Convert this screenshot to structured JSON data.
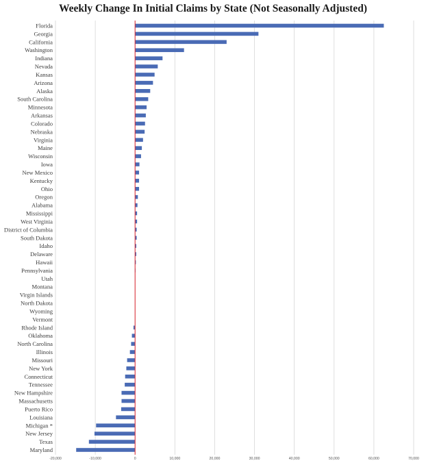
{
  "colors": {
    "bar": "#4a6bb5",
    "zero_line": "#d9303a",
    "grid": "#d6d6d6",
    "text": "#3a3a3a"
  },
  "chart_data": {
    "type": "bar",
    "orientation": "horizontal",
    "title": "Weekly Change In Initial Claims by State (Not Seasonally Adjusted)",
    "xlabel": "",
    "ylabel": "",
    "xlim": [
      -20000,
      70000
    ],
    "xticks": [
      -20000,
      -10000,
      0,
      10000,
      20000,
      30000,
      40000,
      50000,
      60000,
      70000
    ],
    "xtick_labels": [
      "-20,000",
      "-10,000",
      "0",
      "10,000",
      "20,000",
      "30,000",
      "40,000",
      "50,000",
      "60,000",
      "70,000"
    ],
    "grid": true,
    "categories": [
      "Florida",
      "Georgia",
      "California",
      "Washington",
      "Indiana",
      "Nevada",
      "Kansas",
      "Arizona",
      "Alaska",
      "South Carolina",
      "Minnesota",
      "Arkansas",
      "Colorado",
      "Nebraska",
      "Virginia",
      "Maine",
      "Wisconsin",
      "Iowa",
      "New Mexico",
      "Kentucky",
      "Ohio",
      "Oregon",
      "Alabama",
      "Mississippi",
      "West Virginia",
      "District of Columbia",
      "South Dakota",
      "Idaho",
      "Delaware",
      "Hawaii",
      "Pennsylvania",
      "Utah",
      "Montana",
      "Virgin Islands",
      "North Dakota",
      "Wyoming",
      "Vermont",
      "Rhode Island",
      "Oklahoma",
      "North Carolina",
      "Illinois",
      "Missouri",
      "New York",
      "Connecticut",
      "Tennessee",
      "New Hampshire",
      "Massachusetts",
      "Puerto Rico",
      "Louisiana",
      "Michigan *",
      "New Jersey",
      "Texas",
      "Maryland"
    ],
    "values": [
      62500,
      31000,
      23000,
      12300,
      6900,
      5700,
      4900,
      4500,
      3800,
      3300,
      2900,
      2700,
      2500,
      2400,
      2000,
      1700,
      1500,
      1100,
      1000,
      1000,
      1000,
      700,
      600,
      500,
      500,
      400,
      400,
      300,
      300,
      200,
      100,
      50,
      30,
      20,
      10,
      10,
      0,
      -400,
      -800,
      -1000,
      -1300,
      -2000,
      -2200,
      -2500,
      -2600,
      -3400,
      -3400,
      -3500,
      -4800,
      -9800,
      -10200,
      -11600,
      -14800
    ]
  }
}
